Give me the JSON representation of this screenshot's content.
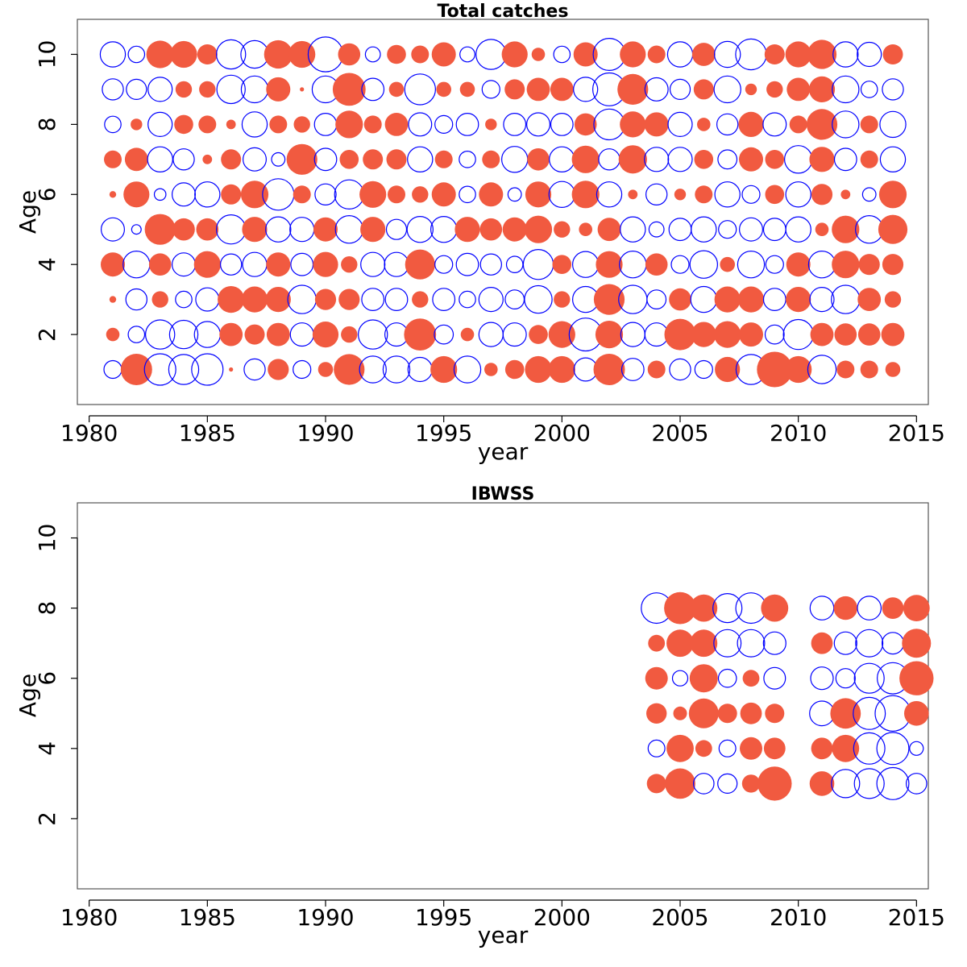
{
  "chart_data": [
    {
      "type": "scatter",
      "subtype": "bubble",
      "title": "Total catches",
      "xlabel": "year",
      "ylabel": "Age",
      "xlim": [
        1979.5,
        2015.5
      ],
      "ylim": [
        0,
        11
      ],
      "x_ticks": [
        1980,
        1985,
        1990,
        1995,
        2000,
        2005,
        2010,
        2015
      ],
      "y_ticks": [
        2,
        4,
        6,
        8,
        10
      ],
      "colors": {
        "positive": "#f15a40",
        "negative": "#0000ff"
      },
      "years": [
        1981,
        1982,
        1983,
        1984,
        1985,
        1986,
        1987,
        1988,
        1989,
        1990,
        1991,
        1992,
        1993,
        1994,
        1995,
        1996,
        1997,
        1998,
        1999,
        2000,
        2001,
        2002,
        2003,
        2004,
        2005,
        2006,
        2007,
        2008,
        2009,
        2010,
        2011,
        2012,
        2013,
        2014
      ],
      "ages": [
        1,
        2,
        3,
        4,
        5,
        6,
        7,
        8,
        9,
        10
      ],
      "residuals_by_age": [
        [
          -0.35,
          1.1,
          -1.1,
          -1.0,
          -1.1,
          0.02,
          -0.5,
          0.5,
          -0.35,
          0.25,
          1.05,
          -0.8,
          -0.8,
          -0.65,
          0.8,
          -0.8,
          0.2,
          0.4,
          0.8,
          0.8,
          -0.6,
          1.1,
          -0.55,
          0.35,
          -0.5,
          -0.35,
          0.7,
          -1.0,
          1.4,
          0.8,
          -0.9,
          0.35,
          0.35,
          0.25
        ],
        [
          0.2,
          -0.3,
          -0.95,
          -0.9,
          -0.75,
          0.6,
          0.45,
          0.6,
          -0.6,
          0.75,
          0.3,
          -0.95,
          -0.6,
          1.15,
          -0.4,
          0.2,
          -0.65,
          -0.6,
          0.4,
          0.8,
          -1.2,
          0.85,
          -0.65,
          -0.6,
          1.1,
          0.7,
          0.8,
          0.65,
          -0.4,
          -1.0,
          0.6,
          0.55,
          0.55,
          0.6
        ],
        [
          0.05,
          -0.5,
          0.3,
          -0.3,
          -0.6,
          0.8,
          0.75,
          0.7,
          -0.9,
          0.5,
          0.5,
          -0.55,
          -0.55,
          0.3,
          -0.55,
          -0.3,
          -0.65,
          -0.4,
          -0.85,
          0.3,
          -0.75,
          1.05,
          -0.9,
          -0.4,
          0.55,
          -0.75,
          0.75,
          0.75,
          -0.55,
          0.7,
          -0.65,
          -0.9,
          0.6,
          0.3
        ],
        [
          0.65,
          -0.8,
          0.55,
          -0.6,
          0.8,
          -0.5,
          -0.65,
          0.65,
          -0.55,
          0.7,
          0.3,
          -0.65,
          -0.65,
          1.0,
          -0.35,
          -0.55,
          -0.5,
          -0.3,
          -1.0,
          0.4,
          -0.75,
          0.8,
          -0.8,
          0.55,
          -0.35,
          -0.85,
          0.25,
          -0.8,
          -0.35,
          0.65,
          -0.8,
          0.85,
          0.5,
          0.5
        ],
        [
          -0.6,
          -0.1,
          1.05,
          0.55,
          0.55,
          -0.95,
          0.7,
          -0.7,
          -0.65,
          0.65,
          -0.85,
          0.7,
          -0.45,
          -0.75,
          -0.75,
          0.7,
          0.55,
          0.65,
          0.85,
          0.3,
          0.2,
          0.6,
          -0.7,
          -0.25,
          -0.55,
          -0.7,
          -0.35,
          -0.6,
          -0.55,
          -0.7,
          0.2,
          0.85,
          -0.85,
          0.95
        ],
        [
          0.05,
          0.75,
          -0.15,
          -0.6,
          -0.7,
          0.45,
          0.85,
          -1.1,
          0.35,
          -0.5,
          -0.95,
          0.8,
          0.35,
          0.3,
          0.65,
          -0.3,
          0.65,
          -0.2,
          0.75,
          -0.75,
          0.85,
          -0.7,
          0.1,
          -0.5,
          0.15,
          0.35,
          -0.7,
          -0.35,
          0.4,
          -0.7,
          0.5,
          0.1,
          -0.2,
          0.85
        ],
        [
          0.35,
          0.6,
          -0.7,
          -0.5,
          0.1,
          0.45,
          -0.6,
          -0.2,
          1.05,
          -0.55,
          0.4,
          0.45,
          0.45,
          -0.7,
          0.35,
          -0.3,
          0.35,
          -0.75,
          0.55,
          -0.7,
          0.85,
          -0.5,
          0.9,
          -0.65,
          -0.65,
          0.4,
          -0.4,
          0.65,
          0.4,
          -0.85,
          0.7,
          -0.55,
          0.35,
          -0.7
        ],
        [
          -0.3,
          0.15,
          -0.65,
          0.4,
          0.35,
          0.1,
          -0.7,
          0.35,
          0.3,
          -0.55,
          0.85,
          0.35,
          0.6,
          -0.6,
          -0.35,
          -0.55,
          0.15,
          -0.55,
          -0.6,
          -0.55,
          0.55,
          -1.05,
          0.75,
          0.65,
          -0.65,
          0.2,
          -0.5,
          0.7,
          -0.6,
          0.35,
          1.05,
          -0.8,
          0.35,
          -0.75
        ],
        [
          -0.5,
          -0.45,
          -0.65,
          0.3,
          0.3,
          -0.9,
          -0.8,
          0.65,
          0.02,
          -0.8,
          1.2,
          -0.55,
          0.25,
          -1.05,
          0.25,
          0.25,
          -0.35,
          0.45,
          0.6,
          0.6,
          -0.65,
          -1.2,
          1.05,
          -0.6,
          -0.45,
          0.45,
          -0.8,
          0.15,
          0.3,
          0.6,
          0.75,
          -0.8,
          -0.3,
          -0.5
        ],
        [
          -0.7,
          -0.3,
          0.85,
          0.8,
          0.45,
          -0.95,
          -0.85,
          0.9,
          0.8,
          -1.35,
          0.55,
          -0.25,
          0.4,
          0.35,
          0.65,
          -0.25,
          -1.0,
          0.75,
          0.2,
          -0.3,
          0.65,
          -1.15,
          0.75,
          0.35,
          -0.7,
          0.6,
          -0.75,
          -1.05,
          0.45,
          0.75,
          0.95,
          -0.7,
          -0.65,
          0.45
        ]
      ]
    },
    {
      "type": "scatter",
      "subtype": "bubble",
      "title": "IBWSS",
      "xlabel": "year",
      "ylabel": "Age",
      "xlim": [
        1979.5,
        2015.5
      ],
      "ylim": [
        0,
        11
      ],
      "x_ticks": [
        1980,
        1985,
        1990,
        1995,
        2000,
        2005,
        2010,
        2015
      ],
      "y_ticks": [
        2,
        4,
        6,
        8,
        10
      ],
      "colors": {
        "positive": "#f15a40",
        "negative": "#0000ff"
      },
      "years": [
        2004,
        2005,
        2006,
        2007,
        2008,
        2009,
        2011,
        2012,
        2013,
        2014,
        2015
      ],
      "ages": [
        3,
        4,
        5,
        6,
        7,
        8
      ],
      "residuals_by_age": [
        [
          0.4,
          1.0,
          -0.45,
          -0.4,
          0.35,
          1.25,
          0.65,
          -0.85,
          -0.95,
          -1.1,
          -0.45
        ],
        [
          -0.3,
          0.8,
          0.3,
          -0.3,
          0.55,
          0.5,
          0.5,
          0.8,
          -1.05,
          -1.1,
          -0.2
        ],
        [
          0.45,
          0.2,
          0.95,
          0.4,
          0.5,
          0.4,
          -0.65,
          1.0,
          -1.1,
          -1.35,
          0.65
        ],
        [
          0.55,
          -0.25,
          0.85,
          -0.35,
          0.3,
          -0.5,
          -0.55,
          -0.4,
          -0.95,
          -1.05,
          1.25
        ],
        [
          0.3,
          0.8,
          0.8,
          -0.8,
          -0.8,
          -0.55,
          0.5,
          -0.55,
          -0.8,
          -0.5,
          0.9
        ],
        [
          -1.0,
          1.1,
          0.8,
          -0.9,
          -1.0,
          0.8,
          -0.6,
          0.6,
          -0.6,
          0.5,
          0.75
        ]
      ]
    }
  ]
}
